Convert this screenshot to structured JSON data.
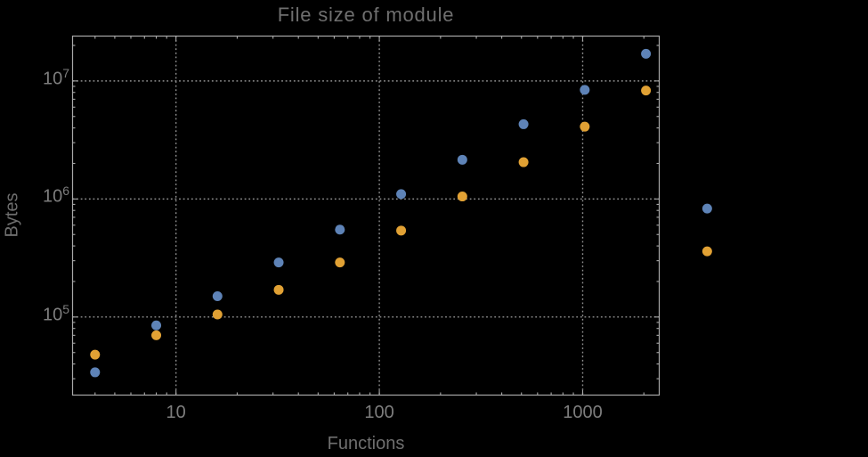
{
  "chart_data": {
    "type": "scatter",
    "title": "File size of module",
    "xlabel": "Functions",
    "ylabel": "Bytes",
    "x_scale": "log",
    "y_scale": "log",
    "grid": true,
    "legend": false,
    "xlim": [
      3.1,
      2380
    ],
    "ylim": [
      21800,
      24000000
    ],
    "x": [
      4,
      8,
      16,
      32,
      64,
      128,
      256,
      512,
      1024,
      2048,
      4096
    ],
    "series": [
      {
        "name": "blue-series",
        "color": "#5e83b7",
        "values": [
          34000,
          85000,
          150000,
          290000,
          550000,
          1100000,
          2150000,
          4300000,
          8400000,
          17000000,
          830000
        ]
      },
      {
        "name": "orange-series",
        "color": "#e1a134",
        "values": [
          48000,
          70000,
          105000,
          170000,
          290000,
          540000,
          1050000,
          2050000,
          4100000,
          8300000,
          360000
        ]
      }
    ],
    "xticks": [
      {
        "label": "10",
        "value": 10
      },
      {
        "label": "100",
        "value": 100
      },
      {
        "label": "1000",
        "value": 1000
      }
    ],
    "yticks": [
      {
        "base": "10",
        "exp": "5",
        "value": 100000
      },
      {
        "base": "10",
        "exp": "6",
        "value": 1000000
      },
      {
        "base": "10",
        "exp": "7",
        "value": 10000000
      }
    ]
  },
  "colors": {
    "background": "#000000",
    "frame": "#a8a8a8",
    "grid": "#8f8f8f",
    "title_text": "#6f6f6f",
    "tick_text": "#7d7d7d"
  }
}
